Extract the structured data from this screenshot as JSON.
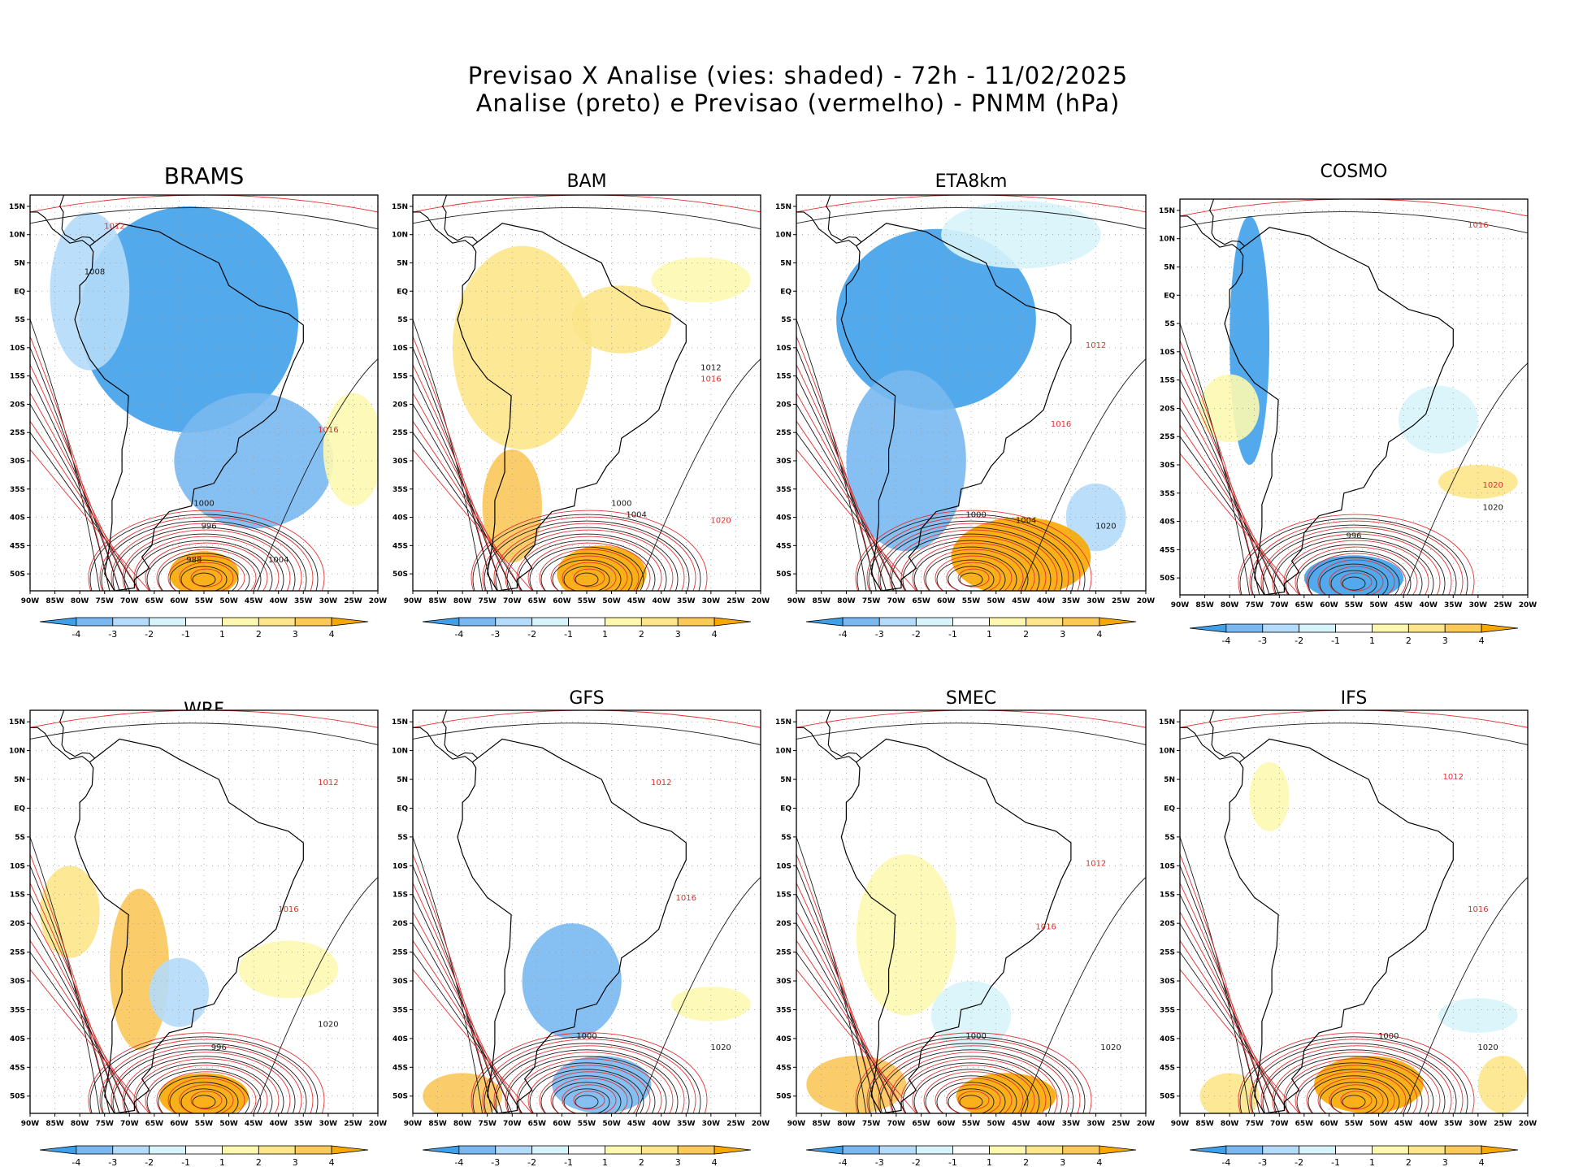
{
  "figure": {
    "title_line1": "Previsao X Analise (vies: shaded) - 72h - 11/02/2025",
    "title_line2": "Analise (preto) e Previsao (vermelho) - PNMM (hPa)"
  },
  "colors": {
    "neg4": "#3fa0ea",
    "neg3": "#79b8f0",
    "neg2": "#b4dcfa",
    "neg1": "#d8f4fb",
    "pos1": "#fdf8b0",
    "pos2": "#fce58a",
    "pos3": "#fbc85a",
    "pos4": "#f9a800",
    "analysis_line": "#1a1a1a",
    "forecast_line": "#e23030",
    "ocean": "#ffffff"
  },
  "chart_data": {
    "type": "heatmap",
    "variable": "PNMM (hPa)",
    "bias": "Previsao - Analise (shaded)",
    "lon_ticks": [
      "90W",
      "85W",
      "80W",
      "75W",
      "70W",
      "65W",
      "60W",
      "55W",
      "50W",
      "45W",
      "40W",
      "35W",
      "30W",
      "25W",
      "20W"
    ],
    "lat_ticks": [
      "15N",
      "10N",
      "5N",
      "EQ",
      "5S",
      "10S",
      "15S",
      "20S",
      "25S",
      "30S",
      "35S",
      "40S",
      "45S",
      "50S"
    ],
    "colorbar_labels": [
      "-4",
      "-3",
      "-2",
      "-1",
      "1",
      "2",
      "3",
      "4"
    ],
    "lon_range": [
      -90,
      -20
    ],
    "lat_range": [
      -53,
      17
    ],
    "panels": [
      {
        "model": "BRAMS",
        "bias_regions": [
          {
            "lon": -58,
            "lat": -5,
            "rx": 22,
            "ry": 20,
            "level": -4
          },
          {
            "lon": -45,
            "lat": -30,
            "rx": 16,
            "ry": 12,
            "level": -3
          },
          {
            "lon": -78,
            "lat": 0,
            "rx": 8,
            "ry": 14,
            "level": -2
          },
          {
            "lon": -25,
            "lat": -28,
            "rx": 6,
            "ry": 10,
            "level": 1
          },
          {
            "lon": -55,
            "lat": -50,
            "rx": 7,
            "ry": 4,
            "level": 4
          }
        ],
        "analysis_isobars": [
          {
            "lon": -77,
            "lat": 3,
            "label": "1008"
          },
          {
            "lon": -55,
            "lat": -38,
            "label": "1000"
          },
          {
            "lon": -54,
            "lat": -42,
            "label": "996"
          },
          {
            "lon": -57,
            "lat": -48,
            "label": "988"
          },
          {
            "lon": -40,
            "lat": -48,
            "label": "1004"
          }
        ],
        "forecast_isobars": [
          {
            "lon": -30,
            "lat": -25,
            "label": "1016"
          },
          {
            "lon": -73,
            "lat": 11,
            "label": "1012"
          }
        ]
      },
      {
        "model": "BAM",
        "bias_regions": [
          {
            "lon": -68,
            "lat": -10,
            "rx": 14,
            "ry": 18,
            "level": 2
          },
          {
            "lon": -70,
            "lat": -38,
            "rx": 6,
            "ry": 10,
            "level": 3
          },
          {
            "lon": -48,
            "lat": -5,
            "rx": 10,
            "ry": 6,
            "level": 2
          },
          {
            "lon": -52,
            "lat": -50,
            "rx": 9,
            "ry": 5,
            "level": 4
          },
          {
            "lon": -32,
            "lat": 2,
            "rx": 10,
            "ry": 4,
            "level": 1
          }
        ],
        "analysis_isobars": [
          {
            "lon": -45,
            "lat": -40,
            "label": "1004"
          },
          {
            "lon": -48,
            "lat": -38,
            "label": "1000"
          },
          {
            "lon": -30,
            "lat": -14,
            "label": "1012"
          }
        ],
        "forecast_isobars": [
          {
            "lon": -28,
            "lat": -41,
            "label": "1020"
          },
          {
            "lon": -30,
            "lat": -16,
            "label": "1016"
          }
        ]
      },
      {
        "model": "ETA8km",
        "bias_regions": [
          {
            "lon": -62,
            "lat": -5,
            "rx": 20,
            "ry": 16,
            "level": -4
          },
          {
            "lon": -68,
            "lat": -30,
            "rx": 12,
            "ry": 16,
            "level": -3
          },
          {
            "lon": -30,
            "lat": -40,
            "rx": 6,
            "ry": 6,
            "level": -2
          },
          {
            "lon": -45,
            "lat": -47,
            "rx": 14,
            "ry": 7,
            "level": 4
          },
          {
            "lon": -45,
            "lat": 10,
            "rx": 16,
            "ry": 6,
            "level": -1
          }
        ],
        "analysis_isobars": [
          {
            "lon": -54,
            "lat": -40,
            "label": "1000"
          },
          {
            "lon": -44,
            "lat": -41,
            "label": "1004"
          },
          {
            "lon": -28,
            "lat": -42,
            "label": "1020"
          }
        ],
        "forecast_isobars": [
          {
            "lon": -37,
            "lat": -24,
            "label": "1016"
          },
          {
            "lon": -30,
            "lat": -10,
            "label": "1012"
          }
        ]
      },
      {
        "model": "COSMO",
        "bias_regions": [
          {
            "lon": -76,
            "lat": -8,
            "rx": 4,
            "ry": 22,
            "level": -4
          },
          {
            "lon": -80,
            "lat": -20,
            "rx": 6,
            "ry": 6,
            "level": 1
          },
          {
            "lon": -38,
            "lat": -22,
            "rx": 8,
            "ry": 6,
            "level": -1
          },
          {
            "lon": -30,
            "lat": -33,
            "rx": 8,
            "ry": 3,
            "level": 2
          },
          {
            "lon": -55,
            "lat": -50,
            "rx": 10,
            "ry": 4,
            "level": -4
          }
        ],
        "analysis_isobars": [
          {
            "lon": -55,
            "lat": -43,
            "label": "996"
          },
          {
            "lon": -27,
            "lat": -38,
            "label": "1020"
          }
        ],
        "forecast_isobars": [
          {
            "lon": -27,
            "lat": -34,
            "label": "1020"
          },
          {
            "lon": -30,
            "lat": 12,
            "label": "1016"
          }
        ]
      },
      {
        "model": "WRF",
        "bias_regions": [
          {
            "lon": -68,
            "lat": -28,
            "rx": 6,
            "ry": 14,
            "level": 3
          },
          {
            "lon": -82,
            "lat": -18,
            "rx": 6,
            "ry": 8,
            "level": 2
          },
          {
            "lon": -55,
            "lat": -50,
            "rx": 9,
            "ry": 4,
            "level": 4
          },
          {
            "lon": -38,
            "lat": -28,
            "rx": 10,
            "ry": 5,
            "level": 1
          },
          {
            "lon": -60,
            "lat": -32,
            "rx": 6,
            "ry": 6,
            "level": -2
          }
        ],
        "analysis_isobars": [
          {
            "lon": -52,
            "lat": -42,
            "label": "996"
          },
          {
            "lon": -30,
            "lat": -38,
            "label": "1020"
          }
        ],
        "forecast_isobars": [
          {
            "lon": -38,
            "lat": -18,
            "label": "1016"
          },
          {
            "lon": -30,
            "lat": 4,
            "label": "1012"
          }
        ]
      },
      {
        "model": "GFS",
        "bias_regions": [
          {
            "lon": -58,
            "lat": -30,
            "rx": 10,
            "ry": 10,
            "level": -3
          },
          {
            "lon": -52,
            "lat": -48,
            "rx": 10,
            "ry": 5,
            "level": -3
          },
          {
            "lon": -80,
            "lat": -50,
            "rx": 8,
            "ry": 4,
            "level": 3
          },
          {
            "lon": -30,
            "lat": -34,
            "rx": 8,
            "ry": 3,
            "level": 1
          }
        ],
        "analysis_isobars": [
          {
            "lon": -55,
            "lat": -40,
            "label": "1000"
          },
          {
            "lon": -28,
            "lat": -42,
            "label": "1020"
          }
        ],
        "forecast_isobars": [
          {
            "lon": -35,
            "lat": -16,
            "label": "1016"
          },
          {
            "lon": -40,
            "lat": 4,
            "label": "1012"
          }
        ]
      },
      {
        "model": "SMEC",
        "bias_regions": [
          {
            "lon": -68,
            "lat": -22,
            "rx": 10,
            "ry": 14,
            "level": 1
          },
          {
            "lon": -78,
            "lat": -48,
            "rx": 10,
            "ry": 5,
            "level": 3
          },
          {
            "lon": -48,
            "lat": -50,
            "rx": 10,
            "ry": 4,
            "level": 4
          },
          {
            "lon": -55,
            "lat": -36,
            "rx": 8,
            "ry": 6,
            "level": -1
          }
        ],
        "analysis_isobars": [
          {
            "lon": -54,
            "lat": -40,
            "label": "1000"
          },
          {
            "lon": -27,
            "lat": -42,
            "label": "1020"
          }
        ],
        "forecast_isobars": [
          {
            "lon": -40,
            "lat": -21,
            "label": "1016"
          },
          {
            "lon": -30,
            "lat": -10,
            "label": "1012"
          }
        ]
      },
      {
        "model": "IFS",
        "bias_regions": [
          {
            "lon": -52,
            "lat": -48,
            "rx": 11,
            "ry": 5,
            "level": 4
          },
          {
            "lon": -25,
            "lat": -48,
            "rx": 5,
            "ry": 5,
            "level": 2
          },
          {
            "lon": -80,
            "lat": -50,
            "rx": 6,
            "ry": 4,
            "level": 2
          },
          {
            "lon": -72,
            "lat": 2,
            "rx": 4,
            "ry": 6,
            "level": 1
          },
          {
            "lon": -30,
            "lat": -36,
            "rx": 8,
            "ry": 3,
            "level": -1
          }
        ],
        "analysis_isobars": [
          {
            "lon": -48,
            "lat": -40,
            "label": "1000"
          },
          {
            "lon": -28,
            "lat": -42,
            "label": "1020"
          }
        ],
        "forecast_isobars": [
          {
            "lon": -30,
            "lat": -18,
            "label": "1016"
          },
          {
            "lon": -35,
            "lat": 5,
            "label": "1012"
          }
        ]
      }
    ]
  }
}
